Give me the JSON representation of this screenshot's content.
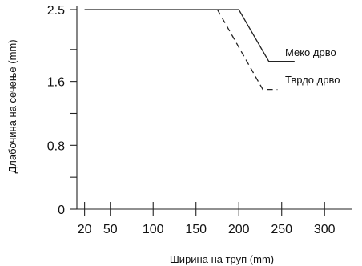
{
  "chart_data": {
    "type": "line",
    "xlabel": "Ширина на труп (mm)",
    "ylabel": "Длабочина на сечење (mm)",
    "xlim": [
      12,
      340
    ],
    "ylim": [
      0,
      2.5
    ],
    "x_ticks": [
      20,
      50,
      100,
      150,
      200,
      250,
      300
    ],
    "y_ticks": [
      0,
      0.8,
      1.6,
      2.5
    ],
    "y_tick_labels": [
      "0",
      "0.8",
      "1.6",
      "2.5"
    ],
    "y_minor_ticks": [
      0.4,
      1.2,
      2.0
    ],
    "series": [
      {
        "name": "Меко дрво",
        "style": "solid",
        "color": "#222222",
        "points": [
          [
            20,
            2.5
          ],
          [
            200,
            2.5
          ],
          [
            235,
            1.85
          ],
          [
            265,
            1.85
          ]
        ]
      },
      {
        "name": "Тврдо дрво",
        "style": "dashed",
        "color": "#222222",
        "points": [
          [
            175,
            2.5
          ],
          [
            228,
            1.5
          ],
          [
            245,
            1.5
          ]
        ]
      }
    ]
  }
}
